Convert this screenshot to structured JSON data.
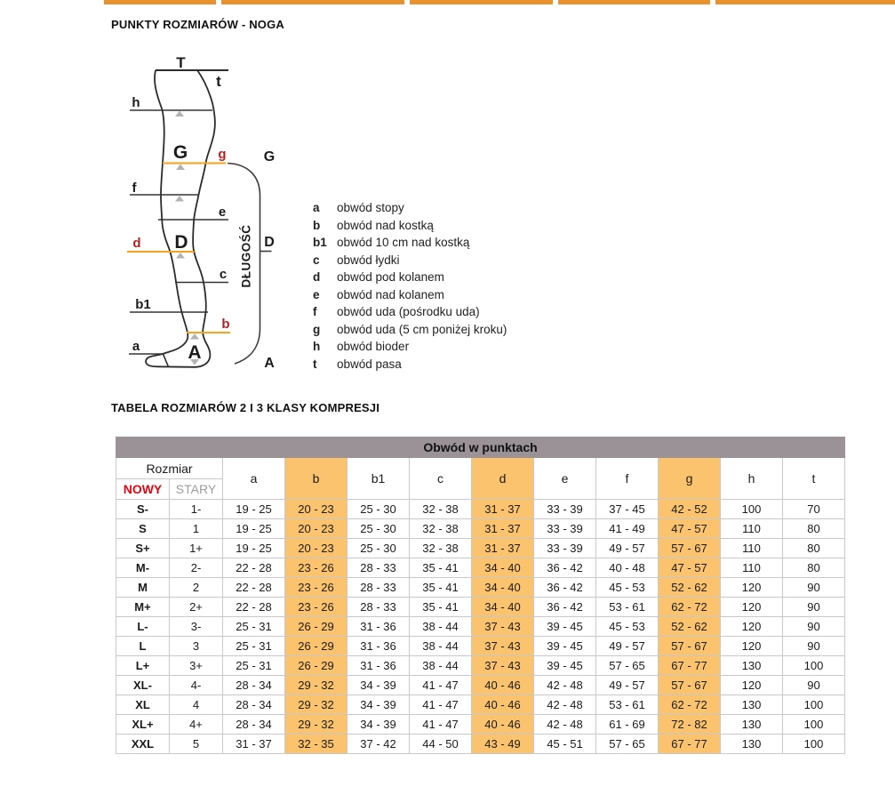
{
  "page": {
    "title": "PUNKTY ROZMIARÓW - NOGA",
    "table_title": "TABELA ROZMIARÓW 2 I 3 KLASY KOMPRESJI"
  },
  "colors": {
    "nav_orange": "#E8912D",
    "highlight_orange": "#FBC36E",
    "header_gray": "#9A9297",
    "accent_red_new": "#E30613",
    "diagram_red": "#B22222",
    "diagram_orange_line": "#F7A21C"
  },
  "diagram": {
    "labels": {
      "T": "T",
      "t": "t",
      "h": "h",
      "G_big": "G",
      "g": "g",
      "f": "f",
      "e": "e",
      "d": "d",
      "D_big": "D",
      "c": "c",
      "b1": "b1",
      "b": "b",
      "a": "a",
      "A_big": "A",
      "bracket_G": "G",
      "bracket_D": "D",
      "bracket_A": "A",
      "length": "DŁUGOŚĆ"
    },
    "legend": [
      {
        "key": "a",
        "text": "obwód stopy"
      },
      {
        "key": "b",
        "text": "obwód nad kostką"
      },
      {
        "key": "b1",
        "text": "obwód 10 cm nad kostką"
      },
      {
        "key": "c",
        "text": "obwód łydki"
      },
      {
        "key": "d",
        "text": "obwód pod kolanem"
      },
      {
        "key": "e",
        "text": "obwód nad kolanem"
      },
      {
        "key": "f",
        "text": "obwód uda (pośrodku uda)"
      },
      {
        "key": "g",
        "text": "obwód uda (5 cm poniżej kroku)"
      },
      {
        "key": "h",
        "text": "obwód bioder"
      },
      {
        "key": "t",
        "text": "obwód pasa"
      }
    ]
  },
  "table": {
    "group_header": "Obwód w punktach",
    "size_header": "Rozmiar",
    "size_cols": {
      "new": "NOWY",
      "old": "STARY"
    },
    "measure_cols": [
      "a",
      "b",
      "b1",
      "c",
      "d",
      "e",
      "f",
      "g",
      "h",
      "t"
    ],
    "highlight_cols": [
      "b",
      "d",
      "g"
    ],
    "rows": [
      {
        "new": "S-",
        "old": "1-",
        "a": "19 - 25",
        "b": "20 - 23",
        "b1": "25 - 30",
        "c": "32 - 38",
        "d": "31 - 37",
        "e": "33 - 39",
        "f": "37 - 45",
        "g": "42 - 52",
        "h": "100",
        "t": "70"
      },
      {
        "new": "S",
        "old": "1",
        "a": "19 - 25",
        "b": "20 - 23",
        "b1": "25 - 30",
        "c": "32 - 38",
        "d": "31 - 37",
        "e": "33 - 39",
        "f": "41 - 49",
        "g": "47 - 57",
        "h": "110",
        "t": "80"
      },
      {
        "new": "S+",
        "old": "1+",
        "a": "19 - 25",
        "b": "20 - 23",
        "b1": "25 - 30",
        "c": "32 - 38",
        "d": "31 - 37",
        "e": "33 - 39",
        "f": "49 - 57",
        "g": "57 - 67",
        "h": "110",
        "t": "80"
      },
      {
        "new": "M-",
        "old": "2-",
        "a": "22 - 28",
        "b": "23 - 26",
        "b1": "28 - 33",
        "c": "35 - 41",
        "d": "34 - 40",
        "e": "36 - 42",
        "f": "40 - 48",
        "g": "47 - 57",
        "h": "110",
        "t": "80"
      },
      {
        "new": "M",
        "old": "2",
        "a": "22 - 28",
        "b": "23 - 26",
        "b1": "28 - 33",
        "c": "35 - 41",
        "d": "34 - 40",
        "e": "36 - 42",
        "f": "45 - 53",
        "g": "52 - 62",
        "h": "120",
        "t": "90"
      },
      {
        "new": "M+",
        "old": "2+",
        "a": "22 - 28",
        "b": "23 - 26",
        "b1": "28 - 33",
        "c": "35 - 41",
        "d": "34 - 40",
        "e": "36 - 42",
        "f": "53 - 61",
        "g": "62 - 72",
        "h": "120",
        "t": "90"
      },
      {
        "new": "L-",
        "old": "3-",
        "a": "25 - 31",
        "b": "26 - 29",
        "b1": "31 - 36",
        "c": "38 - 44",
        "d": "37 - 43",
        "e": "39 - 45",
        "f": "45 - 53",
        "g": "52 - 62",
        "h": "120",
        "t": "90"
      },
      {
        "new": "L",
        "old": "3",
        "a": "25 - 31",
        "b": "26 - 29",
        "b1": "31 - 36",
        "c": "38 - 44",
        "d": "37 - 43",
        "e": "39 - 45",
        "f": "49 - 57",
        "g": "57 - 67",
        "h": "120",
        "t": "90"
      },
      {
        "new": "L+",
        "old": "3+",
        "a": "25 - 31",
        "b": "26 - 29",
        "b1": "31 - 36",
        "c": "38 - 44",
        "d": "37 - 43",
        "e": "39 - 45",
        "f": "57 - 65",
        "g": "67 - 77",
        "h": "130",
        "t": "100"
      },
      {
        "new": "XL-",
        "old": "4-",
        "a": "28 - 34",
        "b": "29 - 32",
        "b1": "34 - 39",
        "c": "41 - 47",
        "d": "40 - 46",
        "e": "42 - 48",
        "f": "49 - 57",
        "g": "57 - 67",
        "h": "120",
        "t": "90"
      },
      {
        "new": "XL",
        "old": "4",
        "a": "28 - 34",
        "b": "29 - 32",
        "b1": "34 - 39",
        "c": "41 - 47",
        "d": "40 - 46",
        "e": "42 - 48",
        "f": "53 - 61",
        "g": "62 - 72",
        "h": "130",
        "t": "100"
      },
      {
        "new": "XL+",
        "old": "4+",
        "a": "28 - 34",
        "b": "29 - 32",
        "b1": "34 - 39",
        "c": "41 - 47",
        "d": "40 - 46",
        "e": "42 - 48",
        "f": "61 - 69",
        "g": "72 - 82",
        "h": "130",
        "t": "100"
      },
      {
        "new": "XXL",
        "old": "5",
        "a": "31 - 37",
        "b": "32 - 35",
        "b1": "37 - 42",
        "c": "44 - 50",
        "d": "43 - 49",
        "e": "45 - 51",
        "f": "57 - 65",
        "g": "67 - 77",
        "h": "130",
        "t": "100"
      }
    ]
  }
}
